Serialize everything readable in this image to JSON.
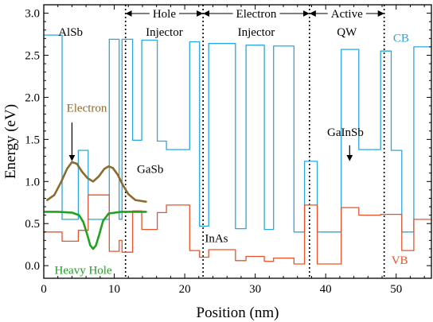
{
  "chart_data": {
    "type": "line",
    "title": "",
    "xlabel": "Position (nm)",
    "ylabel": "Energy (eV)",
    "xlim": [
      0,
      55
    ],
    "ylim": [
      -0.15,
      3.1
    ],
    "xticks": [
      0,
      10,
      20,
      30,
      40,
      50
    ],
    "yticks": [
      0.0,
      0.5,
      1.0,
      1.5,
      2.0,
      2.5,
      3.0
    ],
    "ytick_labels": [
      "0.0",
      "0.5",
      "1.0",
      "1.5",
      "2.0",
      "2.5",
      "3.0"
    ],
    "grid": false,
    "colors": {
      "cb": "#2aa7de",
      "vb": "#e8532a",
      "electron": "#8b6a2d",
      "hole": "#1fa31f",
      "text": "#000000"
    },
    "series": [
      {
        "name": "CB",
        "x": [
          0,
          2.6,
          2.6,
          4.9,
          4.9,
          6.3,
          6.3,
          9.3,
          9.3,
          10.7,
          10.7,
          11.1,
          11.1,
          12.6,
          12.6,
          13.9,
          13.9,
          16.1,
          16.1,
          17.4,
          17.4,
          20.7,
          20.7,
          22.1,
          22.1,
          23.4,
          23.4,
          27.2,
          27.2,
          28.7,
          28.7,
          31.3,
          31.3,
          32.6,
          32.6,
          35.5,
          35.5,
          37.0,
          37.0,
          38.8,
          38.8,
          42.2,
          42.2,
          44.7,
          44.7,
          47.8,
          47.8,
          49.3,
          49.3,
          50.8,
          50.8,
          52.5,
          52.5,
          55
        ],
        "y": [
          2.74,
          2.74,
          0.55,
          0.55,
          1.37,
          1.37,
          0.55,
          0.55,
          2.69,
          2.69,
          0.55,
          0.55,
          2.69,
          2.69,
          1.49,
          1.49,
          2.68,
          2.68,
          1.48,
          1.48,
          1.38,
          1.38,
          2.66,
          2.66,
          0.47,
          0.47,
          2.64,
          2.64,
          0.44,
          0.44,
          2.62,
          2.62,
          0.43,
          0.43,
          2.61,
          2.61,
          0.4,
          0.4,
          1.24,
          1.24,
          0.4,
          0.4,
          2.57,
          2.57,
          1.38,
          1.38,
          2.55,
          2.55,
          1.37,
          1.37,
          0.4,
          0.4,
          2.6,
          2.6
        ]
      },
      {
        "name": "VB",
        "x": [
          0,
          2.6,
          2.6,
          4.9,
          4.9,
          6.3,
          6.3,
          9.3,
          9.3,
          10.7,
          10.7,
          11.1,
          11.1,
          12.6,
          12.6,
          13.9,
          13.9,
          16.1,
          16.1,
          17.4,
          17.4,
          20.7,
          20.7,
          22.1,
          22.1,
          23.4,
          23.4,
          27.2,
          27.2,
          28.7,
          28.7,
          31.3,
          31.3,
          32.6,
          32.6,
          35.5,
          35.5,
          37.0,
          37.0,
          38.8,
          38.8,
          42.2,
          42.2,
          44.7,
          44.7,
          47.8,
          47.8,
          49.3,
          49.3,
          50.8,
          50.8,
          52.5,
          52.5,
          55
        ],
        "y": [
          0.4,
          0.4,
          0.29,
          0.29,
          0.42,
          0.42,
          0.84,
          0.84,
          0.17,
          0.17,
          0.3,
          0.3,
          0.16,
          0.16,
          0.65,
          0.65,
          0.43,
          0.43,
          0.63,
          0.63,
          0.72,
          0.72,
          0.18,
          0.18,
          0.1,
          0.1,
          0.19,
          0.19,
          0.06,
          0.06,
          0.11,
          0.11,
          0.05,
          0.05,
          0.09,
          0.09,
          0.02,
          0.02,
          0.72,
          0.72,
          0.02,
          0.02,
          0.69,
          0.69,
          0.6,
          0.6,
          0.61,
          0.61,
          0.61,
          0.61,
          0.18,
          0.18,
          0.55,
          0.55
        ]
      },
      {
        "name": "Electron",
        "x": [
          0.5,
          1.5,
          2.5,
          3.3,
          4.0,
          4.7,
          5.4,
          6.2,
          7.0,
          7.8,
          8.6,
          9.2,
          9.8,
          10.5,
          11.2,
          12.0,
          13.0,
          14.5
        ],
        "y": [
          0.78,
          0.84,
          1.0,
          1.15,
          1.23,
          1.21,
          1.12,
          1.04,
          1.0,
          1.06,
          1.15,
          1.18,
          1.16,
          1.08,
          0.96,
          0.85,
          0.78,
          0.76
        ]
      },
      {
        "name": "Heavy Hole",
        "x": [
          0.2,
          2.0,
          4.0,
          5.0,
          5.6,
          6.2,
          6.6,
          7.0,
          7.4,
          7.9,
          8.4,
          9.2,
          11.0,
          14.5
        ],
        "y": [
          0.64,
          0.64,
          0.63,
          0.6,
          0.52,
          0.36,
          0.24,
          0.2,
          0.24,
          0.38,
          0.53,
          0.62,
          0.64,
          0.64
        ]
      }
    ],
    "separators_x": [
      11.6,
      22.6,
      37.7,
      48.3
    ],
    "region_labels": [
      {
        "line1": "Hole",
        "line2": "Injector",
        "from": 11.6,
        "to": 22.6
      },
      {
        "line1": "Electron",
        "line2": "Injector",
        "from": 22.6,
        "to": 37.7
      },
      {
        "line1": "Active",
        "line2": "QW",
        "from": 37.7,
        "to": 48.3
      }
    ],
    "annotations": [
      {
        "text": "AlSb",
        "x": 3.8,
        "y": 2.73,
        "color": "text"
      },
      {
        "text": "GaSb",
        "x": 15.1,
        "y": 1.1,
        "color": "text"
      },
      {
        "text": "InAs",
        "x": 24.5,
        "y": 0.28,
        "color": "text"
      },
      {
        "text": "GaInSb",
        "x": 42.8,
        "y": 1.54,
        "color": "text"
      },
      {
        "text": "CB",
        "x": 50.7,
        "y": 2.66,
        "color": "cb"
      },
      {
        "text": "VB",
        "x": 50.5,
        "y": 0.02,
        "color": "vb"
      },
      {
        "text": "Electron",
        "x": 6.1,
        "y": 1.83,
        "color": "electron"
      },
      {
        "text": "Heavy Hole",
        "x": 5.6,
        "y": -0.1,
        "color": "hole"
      }
    ],
    "arrows": [
      {
        "from": [
          4.0,
          1.7
        ],
        "to": [
          4.0,
          1.26
        ],
        "color": "text"
      },
      {
        "from": [
          43.4,
          1.43
        ],
        "to": [
          43.4,
          1.26
        ],
        "color": "text"
      }
    ]
  }
}
